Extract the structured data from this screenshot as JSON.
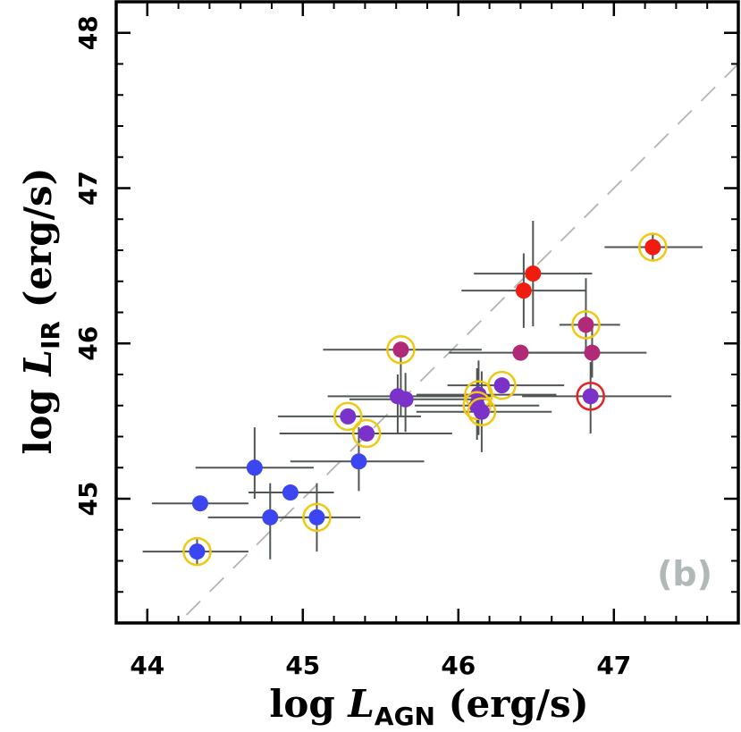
{
  "chart_data": {
    "type": "scatter",
    "panel_label": "(b)",
    "xlabel": {
      "prefix": "log ",
      "symbol": "L",
      "subscript": "AGN",
      "suffix": " (erg/s)"
    },
    "ylabel": {
      "prefix": "log ",
      "symbol": "L",
      "subscript": "IR",
      "suffix": " (erg/s)"
    },
    "xlim": [
      43.8,
      47.8
    ],
    "ylim": [
      44.2,
      48.2
    ],
    "xticks": [
      44,
      45,
      46,
      47
    ],
    "yticks": [
      45,
      46,
      47,
      48
    ],
    "xtick_labels": [
      "44",
      "45",
      "46",
      "47"
    ],
    "ytick_labels": [
      "45",
      "46",
      "47",
      "48"
    ],
    "reference_line": {
      "style": "dashed",
      "color": "#b4b4b4",
      "relation": "y = x"
    },
    "colors": {
      "blue": "#3c46f0",
      "violet": "#7a32c8",
      "magenta": "#b02a78",
      "red": "#f01c10",
      "ring_yellow": "#f0c814",
      "ring_red": "#e82020",
      "errorbar": "#505656"
    },
    "points": [
      {
        "x": 44.32,
        "y": 44.66,
        "xerr": [
          0.35,
          0.33
        ],
        "yerr": [
          0.08,
          0.08
        ],
        "color": "blue",
        "ring": "yellow"
      },
      {
        "x": 44.34,
        "y": 44.97,
        "xerr": [
          0.31,
          0.31
        ],
        "yerr": [
          0.0,
          0.0
        ],
        "color": "blue",
        "ring": null
      },
      {
        "x": 44.69,
        "y": 45.2,
        "xerr": [
          0.38,
          0.38
        ],
        "yerr": [
          0.2,
          0.26
        ],
        "color": "blue",
        "ring": null
      },
      {
        "x": 44.79,
        "y": 44.88,
        "xerr": [
          0.4,
          0.4
        ],
        "yerr": [
          0.27,
          0.22
        ],
        "color": "blue",
        "ring": null
      },
      {
        "x": 44.92,
        "y": 45.04,
        "xerr": [
          0.27,
          0.28
        ],
        "yerr": [
          0.0,
          0.0
        ],
        "color": "blue",
        "ring": null
      },
      {
        "x": 45.09,
        "y": 44.88,
        "xerr": [
          0.22,
          0.28
        ],
        "yerr": [
          0.22,
          0.22
        ],
        "color": "blue",
        "ring": "yellow"
      },
      {
        "x": 45.36,
        "y": 45.24,
        "xerr": [
          0.44,
          0.42
        ],
        "yerr": [
          0.19,
          0.22
        ],
        "color": "blue",
        "ring": null
      },
      {
        "x": 45.41,
        "y": 45.42,
        "xerr": [
          0.56,
          0.55
        ],
        "yerr": [
          0.0,
          0.0
        ],
        "color": "violet",
        "ring": "yellow"
      },
      {
        "x": 45.29,
        "y": 45.53,
        "xerr": [
          0.45,
          0.47
        ],
        "yerr": [
          0.0,
          0.0
        ],
        "color": "violet",
        "ring": "yellow"
      },
      {
        "x": 45.61,
        "y": 45.66,
        "xerr": [
          0.45,
          0.6
        ],
        "yerr": [
          0.24,
          0.14
        ],
        "color": "violet",
        "ring": null
      },
      {
        "x": 45.66,
        "y": 45.64,
        "xerr": [
          0.36,
          0.53
        ],
        "yerr": [
          0.21,
          0.17
        ],
        "color": "violet",
        "ring": null
      },
      {
        "x": 45.63,
        "y": 45.96,
        "xerr": [
          0.5,
          0.52
        ],
        "yerr": [
          0.43,
          0.0
        ],
        "color": "magenta",
        "ring": "yellow"
      },
      {
        "x": 46.13,
        "y": 45.67,
        "xerr": [
          0.4,
          0.5
        ],
        "yerr": [
          0.26,
          0.22
        ],
        "color": "violet",
        "ring": "yellow"
      },
      {
        "x": 46.12,
        "y": 45.6,
        "xerr": [
          0.4,
          0.4
        ],
        "yerr": [
          0.22,
          0.24
        ],
        "color": "violet",
        "ring": "yellow"
      },
      {
        "x": 46.15,
        "y": 45.56,
        "xerr": [
          0.42,
          0.45
        ],
        "yerr": [
          0.26,
          0.26
        ],
        "color": "violet",
        "ring": "yellow"
      },
      {
        "x": 46.28,
        "y": 45.73,
        "xerr": [
          0.35,
          0.4
        ],
        "yerr": [
          0.0,
          0.0
        ],
        "color": "violet",
        "ring": "yellow"
      },
      {
        "x": 46.4,
        "y": 45.94,
        "xerr": [
          0.46,
          0.46
        ],
        "yerr": [
          0.0,
          0.0
        ],
        "color": "magenta",
        "ring": null
      },
      {
        "x": 46.86,
        "y": 45.94,
        "xerr": [
          0.42,
          0.35
        ],
        "yerr": [
          0.16,
          0.16
        ],
        "color": "magenta",
        "ring": null
      },
      {
        "x": 46.82,
        "y": 46.12,
        "xerr": [
          0.17,
          0.22
        ],
        "yerr": [
          0.18,
          0.3
        ],
        "color": "magenta",
        "ring": "yellow"
      },
      {
        "x": 46.85,
        "y": 45.66,
        "xerr": [
          0.44,
          0.52
        ],
        "yerr": [
          0.24,
          0.22
        ],
        "color": "violet",
        "ring": "red"
      },
      {
        "x": 46.42,
        "y": 46.34,
        "xerr": [
          0.4,
          0.4
        ],
        "yerr": [
          0.24,
          0.24
        ],
        "color": "red",
        "ring": null
      },
      {
        "x": 46.48,
        "y": 46.45,
        "xerr": [
          0.38,
          0.38
        ],
        "yerr": [
          0.34,
          0.34
        ],
        "color": "red",
        "ring": null
      },
      {
        "x": 47.25,
        "y": 46.62,
        "xerr": [
          0.31,
          0.32
        ],
        "yerr": [
          0.08,
          0.08
        ],
        "color": "red",
        "ring": "yellow"
      }
    ]
  }
}
